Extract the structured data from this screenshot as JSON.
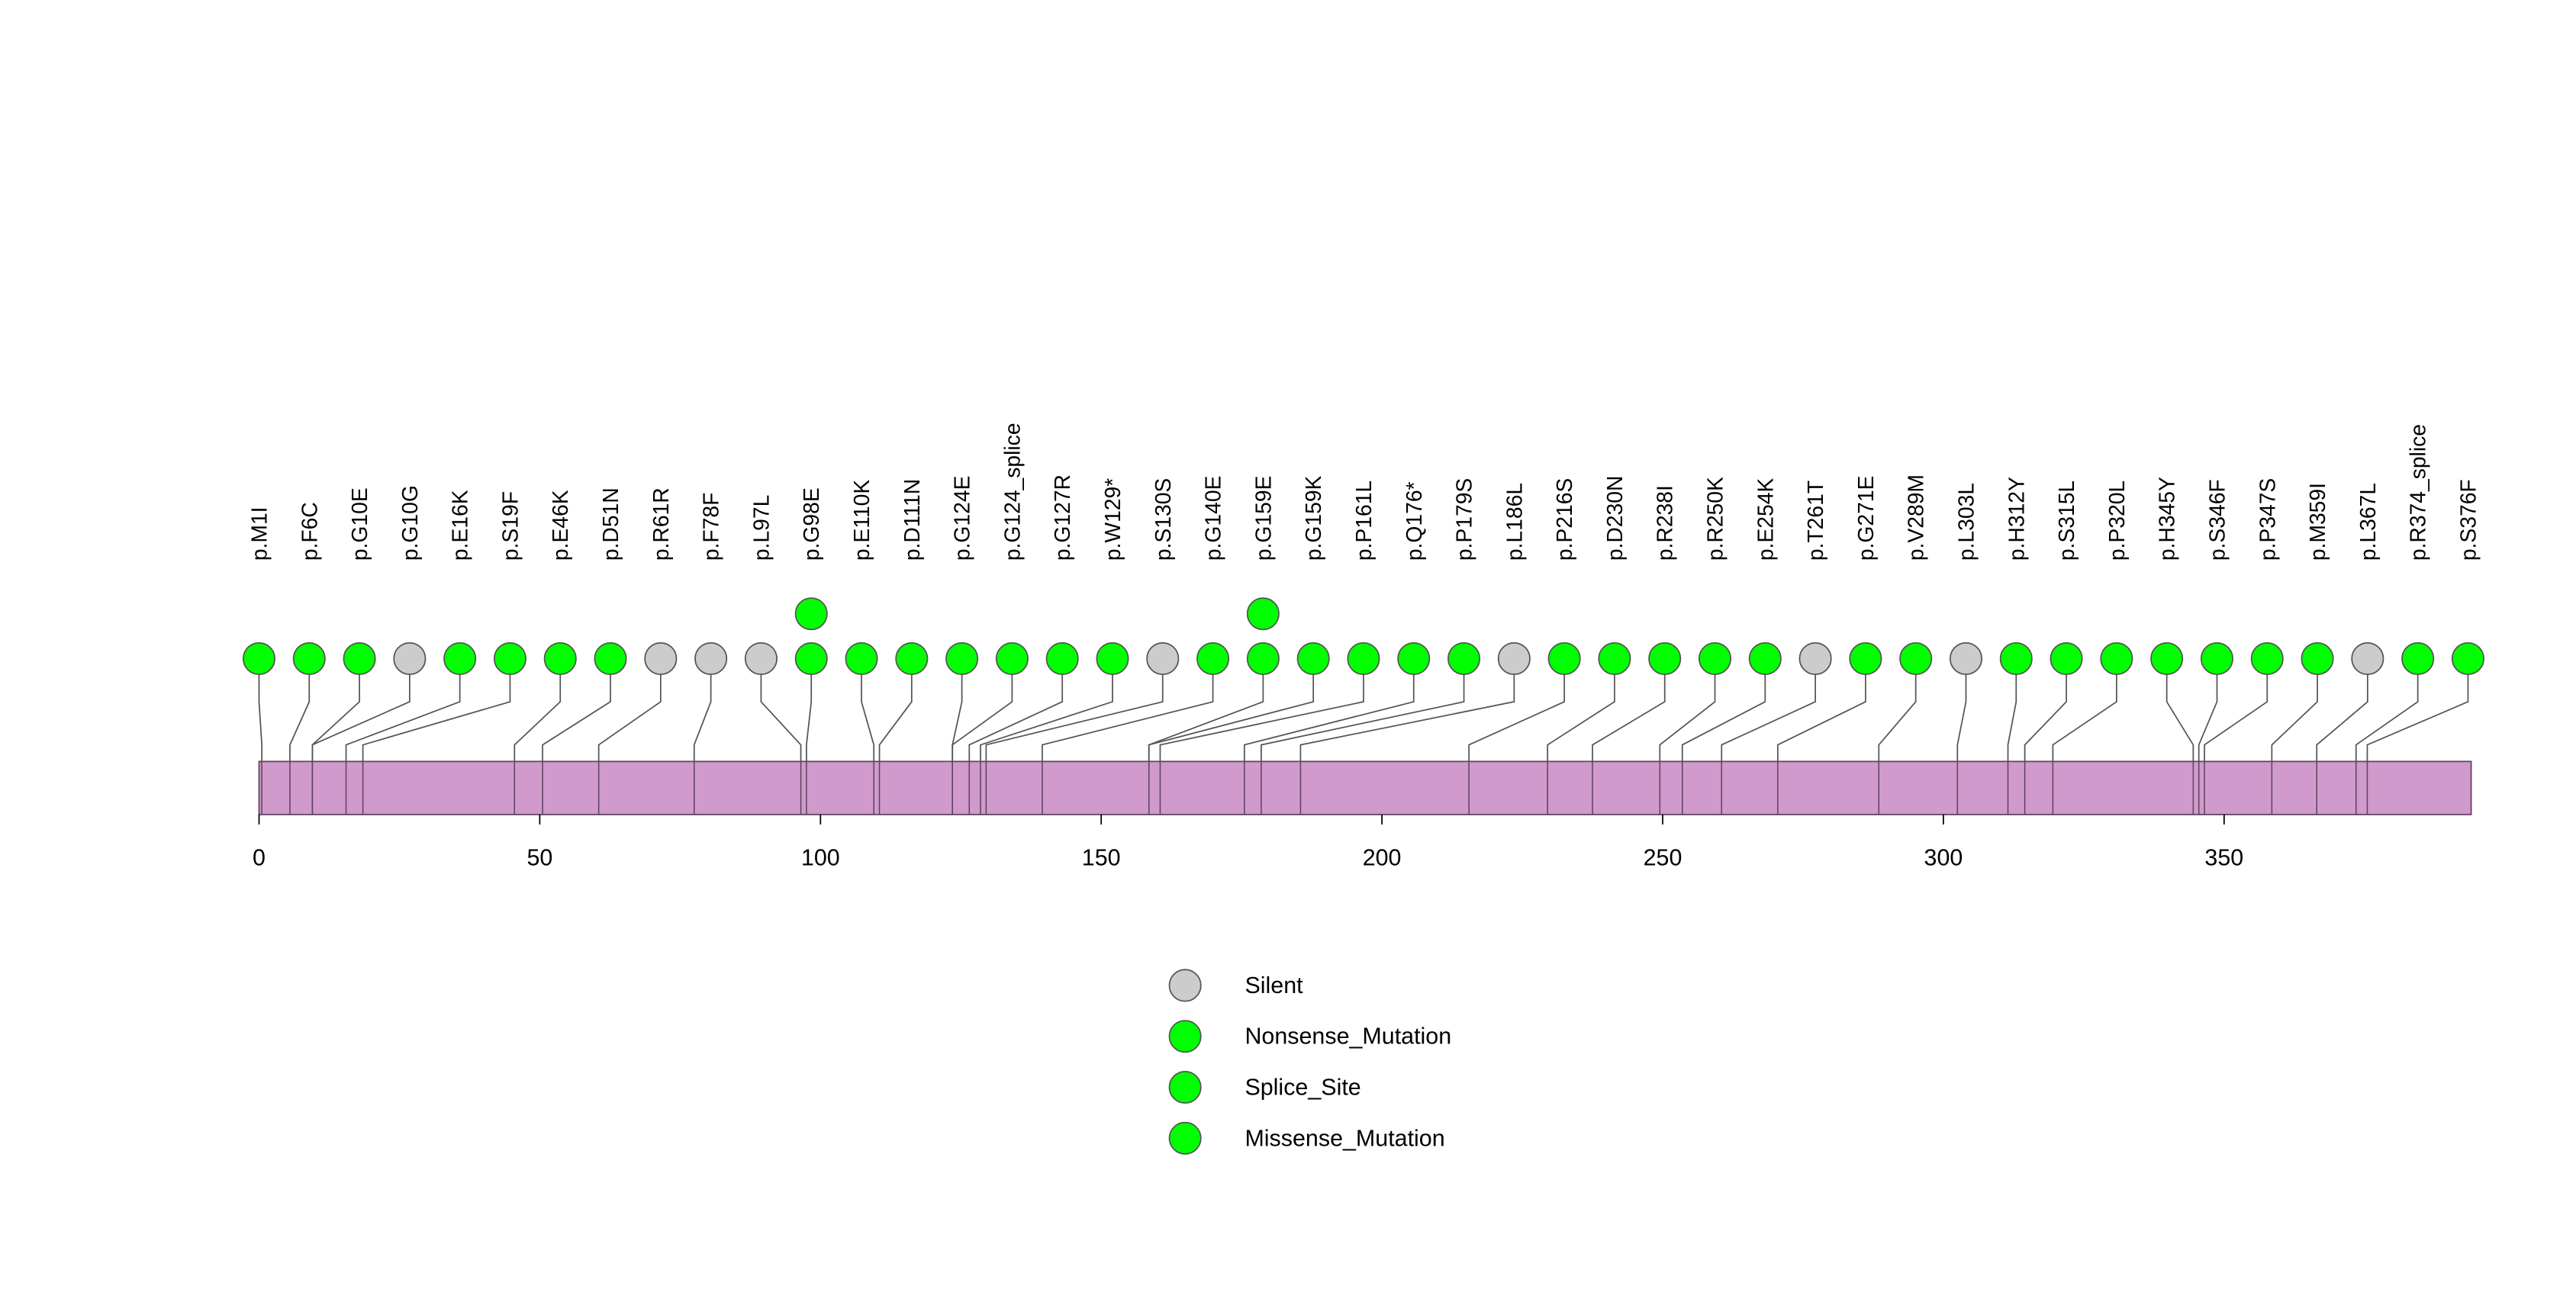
{
  "chart_data": {
    "type": "scatter",
    "xlim": [
      0,
      394
    ],
    "xticks": [
      0,
      50,
      100,
      150,
      200,
      250,
      300,
      350
    ],
    "protein_color": "#D09BCC",
    "protein_border_color": "#5E425E",
    "legend": [
      {
        "label": "Silent",
        "color": "#CCCCCC"
      },
      {
        "label": "Nonsense_Mutation",
        "color": "#00FF00"
      },
      {
        "label": "Splice_Site",
        "color": "#00FF00"
      },
      {
        "label": "Missense_Mutation",
        "color": "#00FF00"
      }
    ],
    "mutations": [
      {
        "label": "p.M1I",
        "position": 1,
        "count": 1,
        "category": 3
      },
      {
        "label": "p.F6C",
        "position": 6,
        "count": 1,
        "category": 3
      },
      {
        "label": "p.G10E",
        "position": 10,
        "count": 1,
        "category": 3
      },
      {
        "label": "p.G10G",
        "position": 10,
        "count": 1,
        "category": 0
      },
      {
        "label": "p.E16K",
        "position": 16,
        "count": 1,
        "category": 3
      },
      {
        "label": "p.S19F",
        "position": 19,
        "count": 1,
        "category": 3
      },
      {
        "label": "p.E46K",
        "position": 46,
        "count": 1,
        "category": 3
      },
      {
        "label": "p.D51N",
        "position": 51,
        "count": 1,
        "category": 3
      },
      {
        "label": "p.R61R",
        "position": 61,
        "count": 1,
        "category": 0
      },
      {
        "label": "p.F78F",
        "position": 78,
        "count": 1,
        "category": 0
      },
      {
        "label": "p.L97L",
        "position": 97,
        "count": 1,
        "category": 0
      },
      {
        "label": "p.G98E",
        "position": 98,
        "count": 2,
        "category": 3
      },
      {
        "label": "p.E110K",
        "position": 110,
        "count": 1,
        "category": 3
      },
      {
        "label": "p.D111N",
        "position": 111,
        "count": 1,
        "category": 3
      },
      {
        "label": "p.G124E",
        "position": 124,
        "count": 1,
        "category": 3
      },
      {
        "label": "p.G124_splice",
        "position": 124,
        "count": 1,
        "category": 2
      },
      {
        "label": "p.G127R",
        "position": 127,
        "count": 1,
        "category": 3
      },
      {
        "label": "p.W129*",
        "position": 129,
        "count": 1,
        "category": 1
      },
      {
        "label": "p.S130S",
        "position": 130,
        "count": 1,
        "category": 0
      },
      {
        "label": "p.G140E",
        "position": 140,
        "count": 1,
        "category": 3
      },
      {
        "label": "p.G159E",
        "position": 159,
        "count": 2,
        "category": 3
      },
      {
        "label": "p.G159K",
        "position": 159,
        "count": 1,
        "category": 3
      },
      {
        "label": "p.P161L",
        "position": 161,
        "count": 1,
        "category": 3
      },
      {
        "label": "p.Q176*",
        "position": 176,
        "count": 1,
        "category": 1
      },
      {
        "label": "p.P179S",
        "position": 179,
        "count": 1,
        "category": 3
      },
      {
        "label": "p.L186L",
        "position": 186,
        "count": 1,
        "category": 0
      },
      {
        "label": "p.P216S",
        "position": 216,
        "count": 1,
        "category": 3
      },
      {
        "label": "p.D230N",
        "position": 230,
        "count": 1,
        "category": 3
      },
      {
        "label": "p.R238I",
        "position": 238,
        "count": 1,
        "category": 3
      },
      {
        "label": "p.R250K",
        "position": 250,
        "count": 1,
        "category": 3
      },
      {
        "label": "p.E254K",
        "position": 254,
        "count": 1,
        "category": 3
      },
      {
        "label": "p.T261T",
        "position": 261,
        "count": 1,
        "category": 0
      },
      {
        "label": "p.G271E",
        "position": 271,
        "count": 1,
        "category": 3
      },
      {
        "label": "p.V289M",
        "position": 289,
        "count": 1,
        "category": 3
      },
      {
        "label": "p.L303L",
        "position": 303,
        "count": 1,
        "category": 0
      },
      {
        "label": "p.H312Y",
        "position": 312,
        "count": 1,
        "category": 3
      },
      {
        "label": "p.S315L",
        "position": 315,
        "count": 1,
        "category": 3
      },
      {
        "label": "p.P320L",
        "position": 320,
        "count": 1,
        "category": 3
      },
      {
        "label": "p.H345Y",
        "position": 345,
        "count": 1,
        "category": 3
      },
      {
        "label": "p.S346F",
        "position": 346,
        "count": 1,
        "category": 3
      },
      {
        "label": "p.P347S",
        "position": 347,
        "count": 1,
        "category": 3
      },
      {
        "label": "p.M359I",
        "position": 359,
        "count": 1,
        "category": 3
      },
      {
        "label": "p.L367L",
        "position": 367,
        "count": 1,
        "category": 0
      },
      {
        "label": "p.R374_splice",
        "position": 374,
        "count": 1,
        "category": 2
      },
      {
        "label": "p.S376F",
        "position": 376,
        "count": 1,
        "category": 3
      }
    ]
  }
}
